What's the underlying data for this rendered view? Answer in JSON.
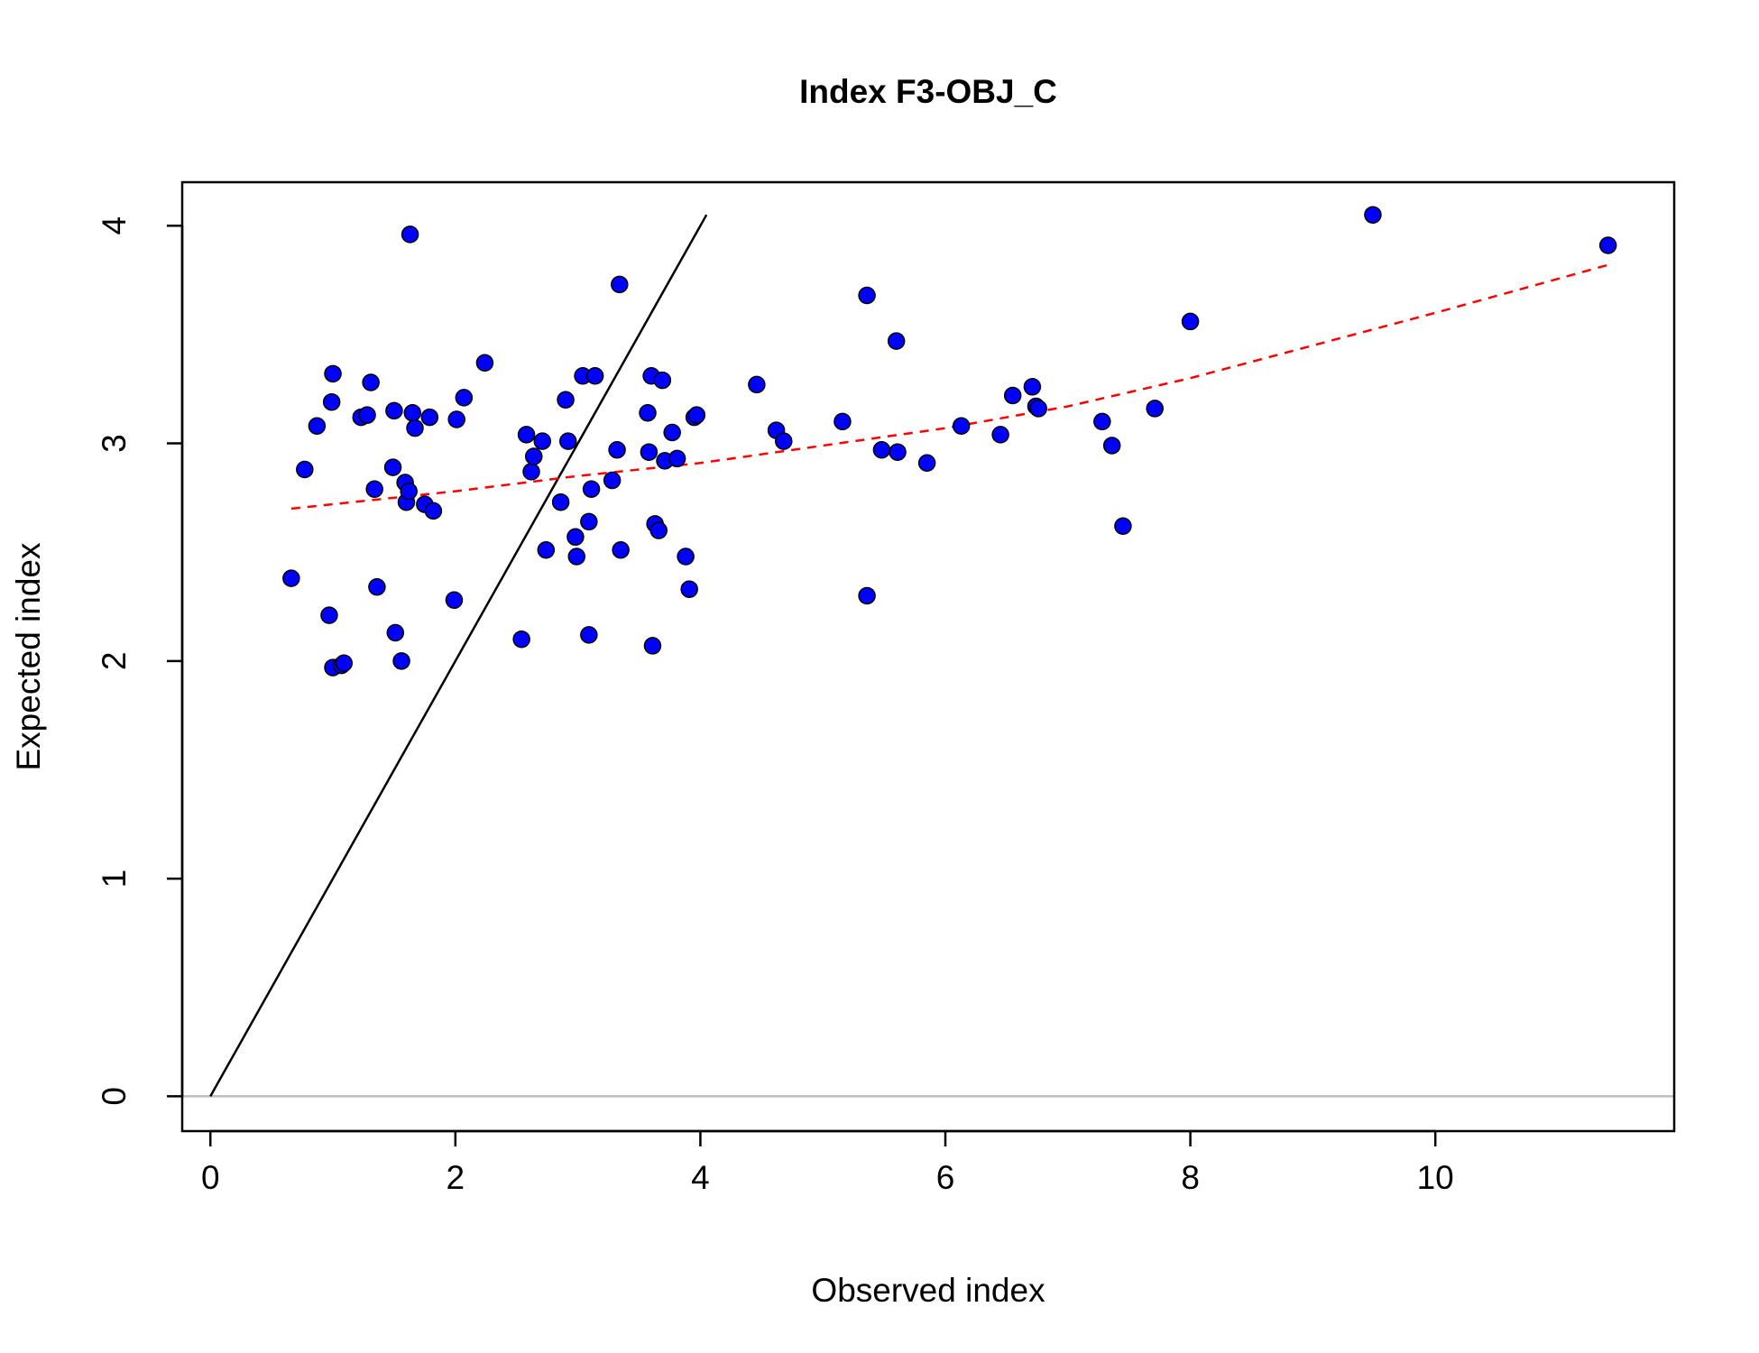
{
  "chart_data": {
    "type": "scatter",
    "title": "Index F3-OBJ_C",
    "xlabel": "Observed index",
    "ylabel": "Expected index",
    "xlim": [
      -0.23,
      11.95
    ],
    "ylim": [
      -0.16,
      4.2
    ],
    "x_ticks": [
      0,
      2,
      4,
      6,
      8,
      10
    ],
    "y_ticks": [
      0,
      1,
      2,
      3,
      4
    ],
    "grid": false,
    "colors": {
      "points_fill": "#0000ff",
      "points_stroke": "#000000",
      "identity_line": "#000000",
      "trend_line": "#ff0000",
      "zero_line": "#bebebe"
    },
    "points": [
      [
        0.66,
        2.38
      ],
      [
        0.77,
        2.88
      ],
      [
        0.87,
        3.08
      ],
      [
        0.97,
        2.21
      ],
      [
        0.99,
        3.19
      ],
      [
        1.0,
        3.32
      ],
      [
        1.0,
        1.97
      ],
      [
        1.07,
        1.98
      ],
      [
        1.09,
        1.99
      ],
      [
        1.23,
        3.12
      ],
      [
        1.28,
        3.13
      ],
      [
        1.31,
        3.28
      ],
      [
        1.34,
        2.79
      ],
      [
        1.36,
        2.34
      ],
      [
        1.49,
        2.89
      ],
      [
        1.5,
        3.15
      ],
      [
        1.51,
        2.13
      ],
      [
        1.56,
        2.0
      ],
      [
        1.59,
        2.82
      ],
      [
        1.6,
        2.73
      ],
      [
        1.62,
        2.78
      ],
      [
        1.63,
        3.96
      ],
      [
        1.65,
        3.14
      ],
      [
        1.67,
        3.07
      ],
      [
        1.75,
        2.72
      ],
      [
        1.79,
        3.12
      ],
      [
        1.82,
        2.69
      ],
      [
        1.99,
        2.28
      ],
      [
        2.01,
        3.11
      ],
      [
        2.07,
        3.21
      ],
      [
        2.24,
        3.37
      ],
      [
        2.54,
        2.1
      ],
      [
        2.58,
        3.04
      ],
      [
        2.62,
        2.87
      ],
      [
        2.64,
        2.94
      ],
      [
        2.71,
        3.01
      ],
      [
        2.74,
        2.51
      ],
      [
        2.86,
        2.73
      ],
      [
        2.9,
        3.2
      ],
      [
        2.92,
        3.01
      ],
      [
        2.98,
        2.57
      ],
      [
        2.99,
        2.48
      ],
      [
        3.04,
        3.31
      ],
      [
        3.09,
        2.64
      ],
      [
        3.09,
        2.12
      ],
      [
        3.11,
        2.79
      ],
      [
        3.14,
        3.31
      ],
      [
        3.28,
        2.83
      ],
      [
        3.32,
        2.97
      ],
      [
        3.34,
        3.73
      ],
      [
        3.35,
        2.51
      ],
      [
        3.57,
        3.14
      ],
      [
        3.58,
        2.96
      ],
      [
        3.6,
        3.31
      ],
      [
        3.61,
        2.07
      ],
      [
        3.63,
        2.63
      ],
      [
        3.66,
        2.6
      ],
      [
        3.69,
        3.29
      ],
      [
        3.71,
        2.92
      ],
      [
        3.77,
        3.05
      ],
      [
        3.81,
        2.93
      ],
      [
        3.88,
        2.48
      ],
      [
        3.91,
        2.33
      ],
      [
        3.95,
        3.12
      ],
      [
        3.97,
        3.13
      ],
      [
        4.46,
        3.27
      ],
      [
        4.62,
        3.06
      ],
      [
        4.68,
        3.01
      ],
      [
        5.16,
        3.1
      ],
      [
        5.36,
        3.68
      ],
      [
        5.36,
        2.3
      ],
      [
        5.48,
        2.97
      ],
      [
        5.6,
        3.47
      ],
      [
        5.61,
        2.96
      ],
      [
        5.85,
        2.91
      ],
      [
        6.13,
        3.08
      ],
      [
        6.45,
        3.04
      ],
      [
        6.55,
        3.22
      ],
      [
        6.71,
        3.26
      ],
      [
        6.74,
        3.17
      ],
      [
        6.76,
        3.16
      ],
      [
        7.28,
        3.1
      ],
      [
        7.36,
        2.99
      ],
      [
        7.45,
        2.62
      ],
      [
        7.71,
        3.16
      ],
      [
        8.0,
        3.56
      ],
      [
        9.49,
        4.05
      ],
      [
        11.41,
        3.91
      ]
    ],
    "identity_line": {
      "x": [
        0,
        4.05
      ],
      "y": [
        0,
        4.05
      ]
    },
    "trend_line": {
      "x": [
        0.66,
        2,
        3,
        4,
        5,
        6,
        7,
        8,
        9,
        10,
        11.41
      ],
      "y": [
        2.7,
        2.78,
        2.85,
        2.91,
        2.99,
        3.07,
        3.17,
        3.3,
        3.45,
        3.6,
        3.82
      ]
    },
    "zero_line": {
      "y": 0
    }
  }
}
